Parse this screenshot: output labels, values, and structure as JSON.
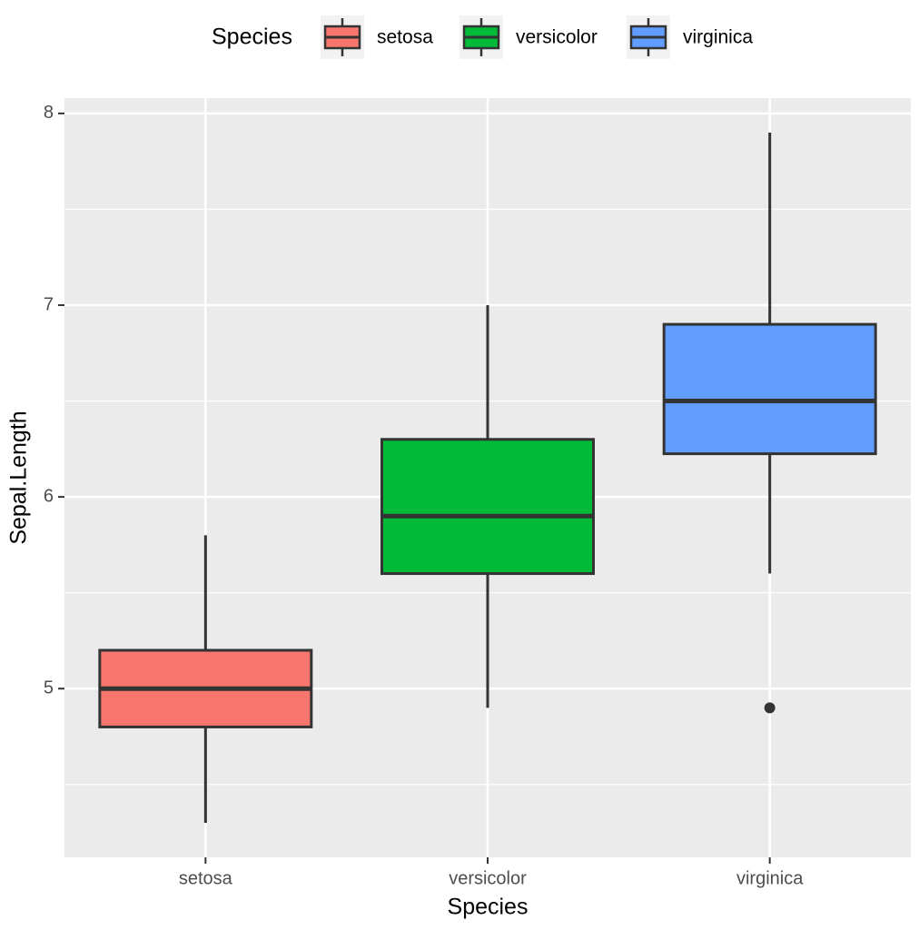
{
  "chart_data": {
    "type": "box",
    "xlabel": "Species",
    "ylabel": "Sepal.Length",
    "legend_title": "Species",
    "categories": [
      "setosa",
      "versicolor",
      "virginica"
    ],
    "colors": [
      "#F8766D",
      "#00BA38",
      "#619CFF"
    ],
    "boxes": [
      {
        "min": 4.3,
        "q1": 4.8,
        "median": 5.0,
        "q3": 5.2,
        "max": 5.8,
        "outliers": []
      },
      {
        "min": 4.9,
        "q1": 5.6,
        "median": 5.9,
        "q3": 6.3,
        "max": 7.0,
        "outliers": []
      },
      {
        "min": 5.6,
        "q1": 6.225,
        "median": 6.5,
        "q3": 6.9,
        "max": 7.9,
        "outliers": [
          4.9
        ]
      }
    ],
    "ylim": [
      4.12,
      8.08
    ],
    "yticks": [
      5,
      6,
      7,
      8
    ],
    "minor_yticks": [
      4.5,
      5.5,
      6.5,
      7.5
    ],
    "grid": true,
    "legend": "top"
  }
}
